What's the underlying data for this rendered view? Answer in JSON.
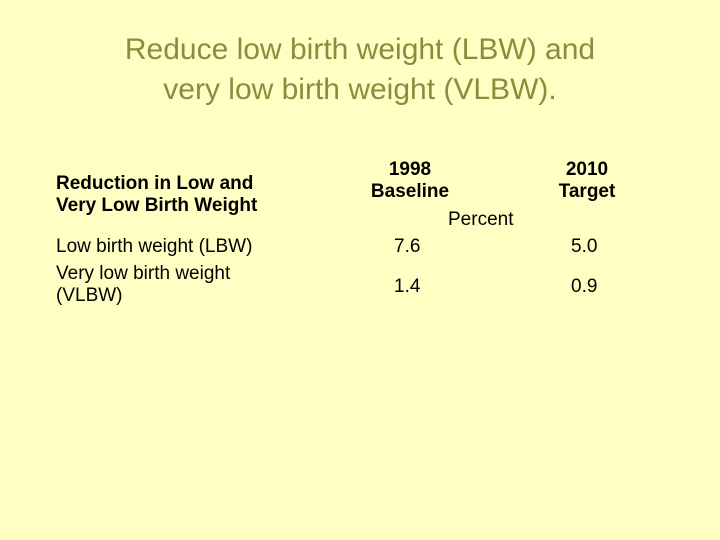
{
  "slide": {
    "title_line1": "Reduce low birth weight (LBW) and",
    "title_line2": "very low birth weight (VLBW)."
  },
  "table": {
    "row_header_line1": "Reduction in Low and",
    "row_header_line2": "Very Low Birth Weight",
    "col1_header_line1": "1998",
    "col1_header_line2": "Baseline",
    "col2_header_line1": "2010",
    "col2_header_line2": "Target",
    "unit_label": "Percent",
    "rows": [
      {
        "label_line1": "Low birth weight (LBW)",
        "label_line2": "",
        "baseline": "7.6",
        "target": "5.0"
      },
      {
        "label_line1": "Very low birth weight",
        "label_line2": "(VLBW)",
        "baseline": "1.4",
        "target": "0.9"
      }
    ]
  },
  "colors": {
    "background": "#FFFFC4",
    "title": "#8C8C3C"
  }
}
